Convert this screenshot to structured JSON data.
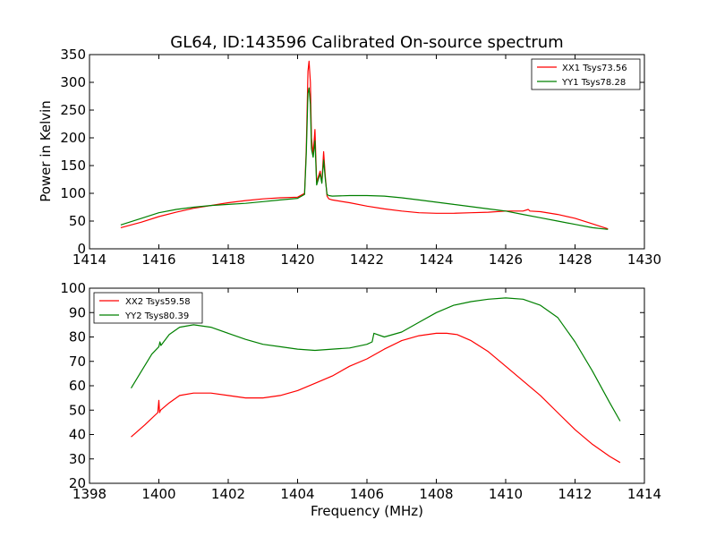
{
  "chart_data": [
    {
      "type": "line",
      "title": "GL64, ID:143596 Calibrated On-source spectrum",
      "xlabel": "",
      "ylabel": "Power in Kelvin",
      "xlim": [
        1414,
        1430
      ],
      "ylim": [
        0,
        350
      ],
      "xticks": [
        1414,
        1416,
        1418,
        1420,
        1422,
        1424,
        1426,
        1428,
        1430
      ],
      "yticks": [
        0,
        50,
        100,
        150,
        200,
        250,
        300,
        350
      ],
      "legend_position": "top-right",
      "series": [
        {
          "name": "XX1 Tsys73.56",
          "color": "#ff0000",
          "x": [
            1414.9,
            1415.5,
            1416,
            1416.5,
            1417,
            1417.5,
            1418,
            1418.5,
            1419,
            1419.5,
            1420,
            1420.2,
            1420.25,
            1420.3,
            1420.33,
            1420.37,
            1420.4,
            1420.45,
            1420.5,
            1420.55,
            1420.6,
            1420.65,
            1420.7,
            1420.75,
            1420.8,
            1420.85,
            1420.9,
            1421,
            1421.5,
            1422,
            1422.5,
            1423,
            1423.5,
            1424,
            1424.5,
            1425,
            1425.5,
            1426,
            1426.5,
            1426.65,
            1426.7,
            1427,
            1427.5,
            1428,
            1428.5,
            1428.95
          ],
          "y": [
            38,
            48,
            58,
            66,
            73,
            78,
            83,
            87,
            90,
            92,
            93,
            100,
            180,
            320,
            338,
            300,
            200,
            170,
            215,
            120,
            130,
            140,
            120,
            175,
            130,
            95,
            90,
            88,
            83,
            77,
            72,
            68,
            65,
            64,
            64,
            65,
            66,
            68,
            68,
            71,
            68,
            67,
            62,
            55,
            45,
            36
          ]
        },
        {
          "name": "YY1 Tsys78.28",
          "color": "#008000",
          "x": [
            1414.9,
            1415.5,
            1416,
            1416.5,
            1417,
            1417.5,
            1418,
            1418.5,
            1419,
            1419.5,
            1420,
            1420.2,
            1420.25,
            1420.3,
            1420.33,
            1420.37,
            1420.4,
            1420.45,
            1420.5,
            1420.55,
            1420.6,
            1420.65,
            1420.7,
            1420.75,
            1420.8,
            1420.85,
            1420.9,
            1421,
            1421.5,
            1422,
            1422.5,
            1423,
            1423.5,
            1424,
            1424.5,
            1425,
            1425.5,
            1426,
            1426.5,
            1427,
            1427.5,
            1428,
            1428.5,
            1428.95
          ],
          "y": [
            43,
            55,
            65,
            71,
            75,
            78,
            80,
            82,
            85,
            88,
            91,
            98,
            170,
            280,
            290,
            260,
            180,
            165,
            195,
            115,
            125,
            135,
            118,
            160,
            125,
            98,
            96,
            95,
            96,
            96,
            95,
            92,
            88,
            84,
            80,
            76,
            72,
            68,
            62,
            56,
            50,
            44,
            38,
            35
          ]
        }
      ]
    },
    {
      "type": "line",
      "title": "",
      "xlabel": "Frequency (MHz)",
      "ylabel": "",
      "xlim": [
        1398,
        1414
      ],
      "ylim": [
        20,
        100
      ],
      "xticks": [
        1398,
        1400,
        1402,
        1404,
        1406,
        1408,
        1410,
        1412,
        1414
      ],
      "yticks": [
        20,
        30,
        40,
        50,
        60,
        70,
        80,
        90,
        100
      ],
      "legend_position": "top-left",
      "series": [
        {
          "name": "XX2 Tsys59.58",
          "color": "#ff0000",
          "x": [
            1399.2,
            1399.6,
            1399.97,
            1400,
            1400.02,
            1400.05,
            1400.3,
            1400.6,
            1401,
            1401.5,
            1402,
            1402.5,
            1403,
            1403.5,
            1404,
            1404.5,
            1405,
            1405.5,
            1406,
            1406.5,
            1407,
            1407.5,
            1408,
            1408.3,
            1408.6,
            1409,
            1409.5,
            1410,
            1410.5,
            1411,
            1411.5,
            1412,
            1412.5,
            1413,
            1413.3
          ],
          "y": [
            39,
            44,
            49,
            54,
            49,
            50,
            53,
            56,
            57,
            57,
            56,
            55,
            55,
            56,
            58,
            61,
            64,
            68,
            71,
            75,
            78.5,
            80.5,
            81.5,
            81.5,
            81,
            78.5,
            74,
            68,
            62,
            56,
            49,
            42,
            36,
            31,
            28.5
          ]
        },
        {
          "name": "YY2 Tsys80.39",
          "color": "#008000",
          "x": [
            1399.2,
            1399.5,
            1399.8,
            1400,
            1400.03,
            1400.06,
            1400.3,
            1400.6,
            1401,
            1401.5,
            1402,
            1402.5,
            1403,
            1403.5,
            1404,
            1404.5,
            1405,
            1405.5,
            1406,
            1406.15,
            1406.2,
            1406.5,
            1407,
            1407.5,
            1408,
            1408.5,
            1409,
            1409.5,
            1410,
            1410.5,
            1411,
            1411.5,
            1412,
            1412.5,
            1413,
            1413.3
          ],
          "y": [
            59,
            66,
            73,
            76,
            78,
            76.5,
            81,
            84,
            85,
            84,
            81.5,
            79,
            77,
            76,
            75,
            74.5,
            75,
            75.5,
            77,
            78,
            81.5,
            80,
            82,
            86,
            90,
            93,
            94.5,
            95.5,
            96,
            95.5,
            93,
            88,
            78,
            66,
            53,
            45.5
          ]
        }
      ]
    }
  ]
}
